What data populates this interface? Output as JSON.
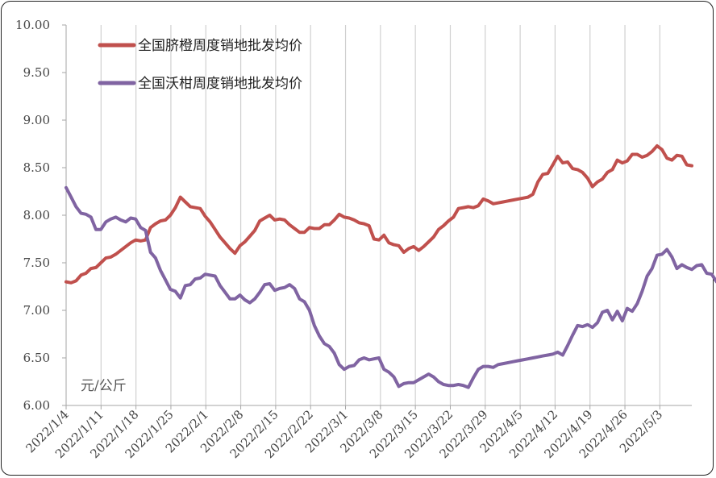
{
  "chart_data": {
    "type": "line",
    "unit_label": "元/公斤",
    "ylim": [
      6.0,
      10.0
    ],
    "y_ticks": [
      "6.00",
      "6.50",
      "7.00",
      "7.50",
      "8.00",
      "8.50",
      "9.00",
      "9.50",
      "10.00"
    ],
    "x_ticks": [
      "2022/1/4",
      "2022/1/11",
      "2022/1/18",
      "2022/1/25",
      "2022/2/1",
      "2022/2/8",
      "2022/2/15",
      "2022/2/22",
      "2022/3/1",
      "2022/3/8",
      "2022/3/15",
      "2022/3/22",
      "2022/3/29",
      "2022/4/5",
      "2022/4/12",
      "2022/4/19",
      "2022/4/26",
      "2022/5/3"
    ],
    "grid": "vertical",
    "legend_position": "top-left",
    "series": [
      {
        "name": "全国脐橙周度销地批发均价",
        "color": "#c0504d",
        "values": [
          7.3,
          7.29,
          7.31,
          7.37,
          7.39,
          7.44,
          7.45,
          7.5,
          7.55,
          7.56,
          7.59,
          7.63,
          7.67,
          7.71,
          7.74,
          7.73,
          7.74,
          7.87,
          7.91,
          7.94,
          7.95,
          8.0,
          8.08,
          8.19,
          8.14,
          8.09,
          8.08,
          8.07,
          7.99,
          7.93,
          7.85,
          7.77,
          7.71,
          7.65,
          7.6,
          7.68,
          7.72,
          7.78,
          7.84,
          7.94,
          7.97,
          8.0,
          7.95,
          7.96,
          7.95,
          7.9,
          7.86,
          7.82,
          7.82,
          7.87,
          7.86,
          7.86,
          7.9,
          7.9,
          7.95,
          8.01,
          7.98,
          7.97,
          7.95,
          7.92,
          7.91,
          7.89,
          7.75,
          7.74,
          7.79,
          7.71,
          7.69,
          7.68,
          7.61,
          7.65,
          7.67,
          7.63,
          7.67,
          7.72,
          7.77,
          7.85,
          7.89,
          7.94,
          7.98,
          8.07,
          8.08,
          8.09,
          8.08,
          8.1,
          8.17,
          8.15,
          8.12,
          8.13,
          8.14,
          8.15,
          8.16,
          8.17,
          8.18,
          8.19,
          8.22,
          8.35,
          8.43,
          8.44,
          8.53,
          8.62,
          8.55,
          8.56,
          8.49,
          8.48,
          8.45,
          8.39,
          8.3,
          8.35,
          8.38,
          8.45,
          8.48,
          8.58,
          8.55,
          8.57,
          8.64,
          8.64,
          8.61,
          8.63,
          8.67,
          8.73,
          8.69,
          8.6,
          8.58,
          8.63,
          8.62,
          8.53,
          8.52
        ]
      },
      {
        "name": "全国沃柑周度销地批发均价",
        "color": "#8064a2",
        "values": [
          8.29,
          8.19,
          8.09,
          8.02,
          8.01,
          7.98,
          7.85,
          7.85,
          7.93,
          7.96,
          7.98,
          7.95,
          7.93,
          7.97,
          7.96,
          7.87,
          7.84,
          7.61,
          7.55,
          7.42,
          7.32,
          7.22,
          7.2,
          7.13,
          7.26,
          7.27,
          7.33,
          7.34,
          7.38,
          7.37,
          7.36,
          7.26,
          7.19,
          7.12,
          7.12,
          7.16,
          7.11,
          7.08,
          7.12,
          7.19,
          7.27,
          7.28,
          7.21,
          7.23,
          7.24,
          7.27,
          7.23,
          7.12,
          7.09,
          7.0,
          6.84,
          6.73,
          6.65,
          6.62,
          6.55,
          6.43,
          6.38,
          6.41,
          6.42,
          6.48,
          6.5,
          6.48,
          6.49,
          6.5,
          6.38,
          6.35,
          6.3,
          6.2,
          6.23,
          6.24,
          6.24,
          6.27,
          6.3,
          6.33,
          6.3,
          6.25,
          6.22,
          6.21,
          6.21,
          6.22,
          6.21,
          6.19,
          6.29,
          6.38,
          6.41,
          6.41,
          6.4,
          6.43,
          6.44,
          6.45,
          6.46,
          6.47,
          6.48,
          6.49,
          6.5,
          6.51,
          6.52,
          6.53,
          6.54,
          6.56,
          6.53,
          6.63,
          6.74,
          6.84,
          6.83,
          6.85,
          6.82,
          6.87,
          6.98,
          7.0,
          6.9,
          6.99,
          6.89,
          7.02,
          6.99,
          7.07,
          7.2,
          7.36,
          7.44,
          7.58,
          7.59,
          7.64,
          7.56,
          7.44,
          7.48,
          7.45,
          7.43,
          7.47,
          7.48,
          7.39,
          7.38,
          7.3
        ]
      }
    ]
  }
}
